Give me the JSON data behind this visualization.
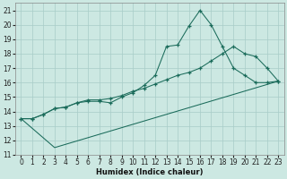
{
  "xlabel": "Humidex (Indice chaleur)",
  "background_color": "#cce8e2",
  "grid_color": "#a8ccc8",
  "line_color": "#1a6b5a",
  "xlim": [
    -0.5,
    23.5
  ],
  "ylim": [
    11,
    21.5
  ],
  "yticks": [
    11,
    12,
    13,
    14,
    15,
    16,
    17,
    18,
    19,
    20,
    21
  ],
  "xticks": [
    0,
    1,
    2,
    3,
    4,
    5,
    6,
    7,
    8,
    9,
    10,
    11,
    12,
    13,
    14,
    15,
    16,
    17,
    18,
    19,
    20,
    21,
    22,
    23
  ],
  "series": [
    {
      "x": [
        0,
        1,
        2,
        3,
        4,
        5,
        6,
        7,
        8,
        9,
        10,
        11,
        12,
        13,
        14,
        15,
        16,
        17,
        18,
        19,
        20,
        21,
        22,
        23
      ],
      "y": [
        13.5,
        13.5,
        13.8,
        14.2,
        14.3,
        14.6,
        14.7,
        14.7,
        14.6,
        15.0,
        15.3,
        15.8,
        16.5,
        18.5,
        18.6,
        19.9,
        21.0,
        20.0,
        18.5,
        17.0,
        16.5,
        16.0,
        16.0,
        16.1
      ],
      "marker": "+"
    },
    {
      "x": [
        0,
        1,
        2,
        3,
        4,
        5,
        6,
        7,
        8,
        9,
        10,
        11,
        12,
        13,
        14,
        15,
        16,
        17,
        18,
        19,
        20,
        21,
        22,
        23
      ],
      "y": [
        13.5,
        13.5,
        13.8,
        14.2,
        14.3,
        14.6,
        14.8,
        14.8,
        14.9,
        15.1,
        15.4,
        15.6,
        15.9,
        16.2,
        16.5,
        16.7,
        17.0,
        17.5,
        18.0,
        18.5,
        18.0,
        17.8,
        17.0,
        16.1
      ],
      "marker": "+"
    },
    {
      "x": [
        0,
        3,
        23
      ],
      "y": [
        13.5,
        11.5,
        16.1
      ],
      "marker": null
    }
  ]
}
